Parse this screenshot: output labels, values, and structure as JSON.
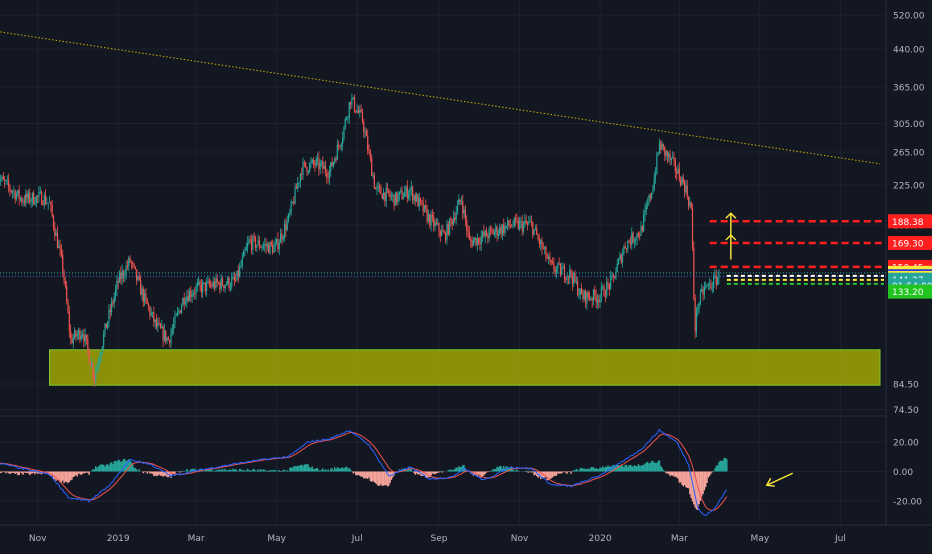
{
  "chart_data": [
    {
      "type": "candlestick",
      "panel": "price",
      "y_scale": "log",
      "ylim": [
        72,
        560
      ],
      "y_ticks": [
        "520.00",
        "440.00",
        "365.00",
        "305.00",
        "265.00",
        "225.00",
        "185.00",
        "84.50",
        "74.50"
      ],
      "x_ticks": [
        "Nov",
        "2019",
        "Mar",
        "May",
        "Jul",
        "Sep",
        "Nov",
        "2020",
        "Mar",
        "May",
        "Jul"
      ],
      "price_path": [
        [
          "2018-10-01",
          235
        ],
        [
          "2018-10-20",
          210
        ],
        [
          "2018-11-05",
          212
        ],
        [
          "2018-11-10",
          205
        ],
        [
          "2018-11-20",
          150
        ],
        [
          "2018-11-26",
          105
        ],
        [
          "2018-12-05",
          110
        ],
        [
          "2018-12-14",
          88
        ],
        [
          "2018-12-22",
          110
        ],
        [
          "2019-01-01",
          140
        ],
        [
          "2019-01-10",
          155
        ],
        [
          "2019-01-20",
          130
        ],
        [
          "2019-01-30",
          112
        ],
        [
          "2019-02-08",
          105
        ],
        [
          "2019-02-20",
          130
        ],
        [
          "2019-03-01",
          135
        ],
        [
          "2019-03-15",
          138
        ],
        [
          "2019-03-31",
          140
        ],
        [
          "2019-04-10",
          170
        ],
        [
          "2019-04-30",
          165
        ],
        [
          "2019-05-10",
          190
        ],
        [
          "2019-05-20",
          245
        ],
        [
          "2019-05-31",
          250
        ],
        [
          "2019-06-10",
          240
        ],
        [
          "2019-06-20",
          290
        ],
        [
          "2019-06-26",
          345
        ],
        [
          "2019-07-05",
          310
        ],
        [
          "2019-07-15",
          220
        ],
        [
          "2019-07-30",
          210
        ],
        [
          "2019-08-10",
          220
        ],
        [
          "2019-08-25",
          190
        ],
        [
          "2019-09-05",
          175
        ],
        [
          "2019-09-18",
          210
        ],
        [
          "2019-09-24",
          170
        ],
        [
          "2019-10-05",
          175
        ],
        [
          "2019-10-25",
          185
        ],
        [
          "2019-11-10",
          185
        ],
        [
          "2019-11-25",
          150
        ],
        [
          "2019-12-10",
          145
        ],
        [
          "2019-12-18",
          130
        ],
        [
          "2019-12-31",
          130
        ],
        [
          "2020-01-10",
          140
        ],
        [
          "2020-01-20",
          168
        ],
        [
          "2020-02-01",
          180
        ],
        [
          "2020-02-10",
          225
        ],
        [
          "2020-02-15",
          275
        ],
        [
          "2020-02-25",
          250
        ],
        [
          "2020-03-05",
          225
        ],
        [
          "2020-03-10",
          200
        ],
        [
          "2020-03-12",
          130
        ],
        [
          "2020-03-13",
          112
        ],
        [
          "2020-03-15",
          125
        ],
        [
          "2020-03-20",
          135
        ],
        [
          "2020-03-25",
          138
        ],
        [
          "2020-03-31",
          143.72
        ]
      ],
      "trendline": {
        "start": [
          "2018-10-01",
          480
        ],
        "end": [
          "2020-07-31",
          250
        ]
      },
      "resistance_lines": [
        {
          "label": "188.38",
          "value": 188.38,
          "color": "#ff1f1f"
        },
        {
          "label": "169.30",
          "value": 169.3,
          "color": "#ff1f1f"
        },
        {
          "label": "150.45",
          "value": 150.45,
          "color": "#ff1f1f"
        }
      ],
      "support_lines": [
        {
          "value": 146.11,
          "color": "#ffffff"
        },
        {
          "value": 142.42,
          "color": "#ffeb3b"
        },
        {
          "value": 141.27,
          "color": "#26c232"
        }
      ],
      "support_zone": {
        "low": 84,
        "high": 100,
        "color": "#b5b800"
      },
      "horizontal_dotted": [
        {
          "value": 146.11,
          "color": "#26a69a"
        },
        {
          "value": 143.72,
          "color": "#3a6dd8"
        }
      ],
      "price_badges": [
        {
          "label": "188.38",
          "value": 188.38,
          "bg": "#ff1f1f",
          "fg": "#ffffff"
        },
        {
          "label": "169.30",
          "value": 169.3,
          "bg": "#ff1f1f",
          "fg": "#ffffff"
        },
        {
          "label": "150.45",
          "value": 150.45,
          "bg": "#ff1f1f",
          "fg": "#ffffff"
        },
        {
          "label": "146.11",
          "value": 146.11,
          "bg": "#ffeb3b",
          "fg": "#131722"
        },
        {
          "label": "143.72",
          "value": 143.72,
          "bg": "#3a3bd0",
          "fg": "#ffffff"
        },
        {
          "label": "142.42",
          "value": 142.42,
          "bg": "#ffeb3b",
          "fg": "#131722"
        },
        {
          "label": "141.27",
          "value": 141.27,
          "bg": "#26a69a",
          "fg": "#ffffff"
        },
        {
          "label": "01:54:00",
          "value": 137.2,
          "bg": "#26a69a",
          "fg": "#ffffff"
        },
        {
          "label": "133.20",
          "value": 133.2,
          "bg": "#22c51f",
          "fg": "#ffffff"
        }
      ],
      "arrows_up": [
        {
          "date": "2020-04-06",
          "from": 156,
          "to": 176
        },
        {
          "date": "2020-04-06",
          "from": 176,
          "to": 196
        }
      ],
      "colors": {
        "up": "#26a69a",
        "down": "#ef5350",
        "trendline": "#c9b000",
        "grid": "#1e2230"
      }
    },
    {
      "type": "macd",
      "panel": "oscillator",
      "ylim": [
        -34,
        34
      ],
      "y_ticks": [
        "20.00",
        "0.00",
        "-20.00"
      ],
      "x_ticks": [
        "Nov",
        "2019",
        "Mar",
        "May",
        "Jul",
        "Sep",
        "Nov",
        "2020",
        "Mar",
        "May",
        "Jul"
      ],
      "macd_path": [
        [
          "2018-10-01",
          6
        ],
        [
          "2018-10-20",
          2
        ],
        [
          "2018-11-10",
          -2
        ],
        [
          "2018-11-25",
          -18
        ],
        [
          "2018-12-10",
          -20
        ],
        [
          "2018-12-25",
          -10
        ],
        [
          "2019-01-10",
          8
        ],
        [
          "2019-01-25",
          5
        ],
        [
          "2019-02-10",
          -3
        ],
        [
          "2019-03-10",
          2
        ],
        [
          "2019-04-05",
          6
        ],
        [
          "2019-04-20",
          8
        ],
        [
          "2019-05-10",
          10
        ],
        [
          "2019-05-25",
          20
        ],
        [
          "2019-06-10",
          22
        ],
        [
          "2019-06-25",
          28
        ],
        [
          "2019-07-10",
          18
        ],
        [
          "2019-07-25",
          -3
        ],
        [
          "2019-08-10",
          3
        ],
        [
          "2019-08-25",
          -5
        ],
        [
          "2019-09-10",
          -4
        ],
        [
          "2019-09-20",
          2
        ],
        [
          "2019-10-05",
          -6
        ],
        [
          "2019-10-25",
          3
        ],
        [
          "2019-11-10",
          2
        ],
        [
          "2019-11-25",
          -9
        ],
        [
          "2019-12-10",
          -10
        ],
        [
          "2019-12-31",
          -3
        ],
        [
          "2020-01-15",
          5
        ],
        [
          "2020-02-01",
          15
        ],
        [
          "2020-02-15",
          28
        ],
        [
          "2020-02-28",
          20
        ],
        [
          "2020-03-08",
          5
        ],
        [
          "2020-03-15",
          -25
        ],
        [
          "2020-03-20",
          -30
        ],
        [
          "2020-03-27",
          -26
        ],
        [
          "2020-04-06",
          -12
        ]
      ],
      "histogram_note": "positive bars teal, negative bars salmon",
      "annotation_arrow": {
        "date": "2020-04-15",
        "value": -12,
        "color": "#ffeb3b"
      },
      "colors": {
        "macd": "#2962ff",
        "signal": "#ef5350",
        "hist_pos": "#26a69a",
        "hist_neg": "#f7a59b"
      }
    }
  ]
}
